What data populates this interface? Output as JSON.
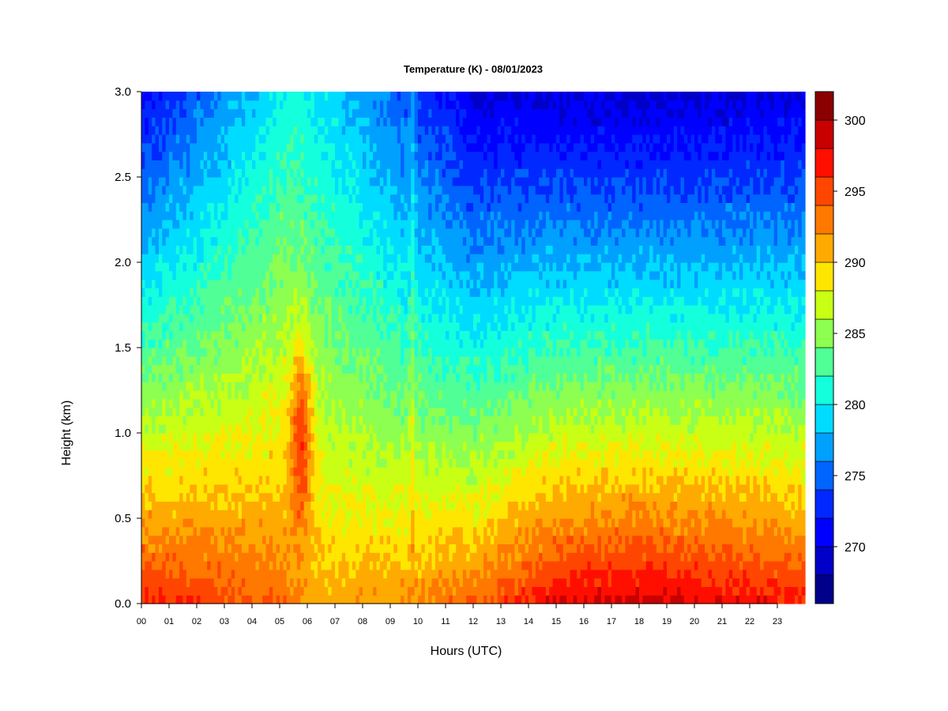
{
  "chart_data": {
    "type": "heatmap",
    "title": "Temperature (K) - 08/01/2023",
    "xlabel": "Hours (UTC)",
    "ylabel": "Height (km)",
    "x_ticks": [
      "00",
      "01",
      "02",
      "03",
      "04",
      "05",
      "06",
      "07",
      "08",
      "09",
      "10",
      "11",
      "12",
      "13",
      "14",
      "15",
      "16",
      "17",
      "18",
      "19",
      "20",
      "21",
      "22",
      "23"
    ],
    "y_ticks": [
      "0.0",
      "0.5",
      "1.0",
      "1.5",
      "2.0",
      "2.5",
      "3.0"
    ],
    "xlim": [
      0,
      24
    ],
    "ylim": [
      0,
      3.0
    ],
    "colorbar": {
      "min": 266,
      "max": 302,
      "step": 2,
      "tick_values": [
        270,
        275,
        280,
        285,
        290,
        295,
        300
      ],
      "tick_labels": [
        "270",
        "275",
        "280",
        "285",
        "290",
        "295",
        "300"
      ],
      "colors": [
        "#00008b",
        "#0000c8",
        "#0000ff",
        "#0028ff",
        "#0064ff",
        "#00a0ff",
        "#00dcff",
        "#14ffdc",
        "#50ff96",
        "#8cff50",
        "#c8ff14",
        "#ffe600",
        "#ffaa00",
        "#ff7800",
        "#ff4600",
        "#ff0f00",
        "#c80000",
        "#8b0000"
      ]
    },
    "grid": false,
    "legend": "right (colorbar)",
    "field_description_points": {
      "surface_temperature_by_hour": [
        {
          "hour": 0,
          "value": 297
        },
        {
          "hour": 3,
          "value": 295
        },
        {
          "hour": 5,
          "value": 294
        },
        {
          "hour": 6,
          "value": 291
        },
        {
          "hour": 9,
          "value": 292
        },
        {
          "hour": 12,
          "value": 294
        },
        {
          "hour": 15,
          "value": 298
        },
        {
          "hour": 18,
          "value": 299
        },
        {
          "hour": 21,
          "value": 298
        },
        {
          "hour": 24,
          "value": 297
        }
      ],
      "top_temperature_3km_by_hour": [
        {
          "hour": 0,
          "value": 271
        },
        {
          "hour": 5.6,
          "value": 281
        },
        {
          "hour": 12,
          "value": 270
        },
        {
          "hour": 18,
          "value": 269
        },
        {
          "hour": 24,
          "value": 270
        }
      ],
      "warm_core_event": {
        "hour_start": 5.4,
        "hour_end": 6.2,
        "height_km_low": 0.5,
        "height_km_high": 1.6,
        "max_value": 301
      },
      "secondary_plume_hour": 9.8
    }
  }
}
